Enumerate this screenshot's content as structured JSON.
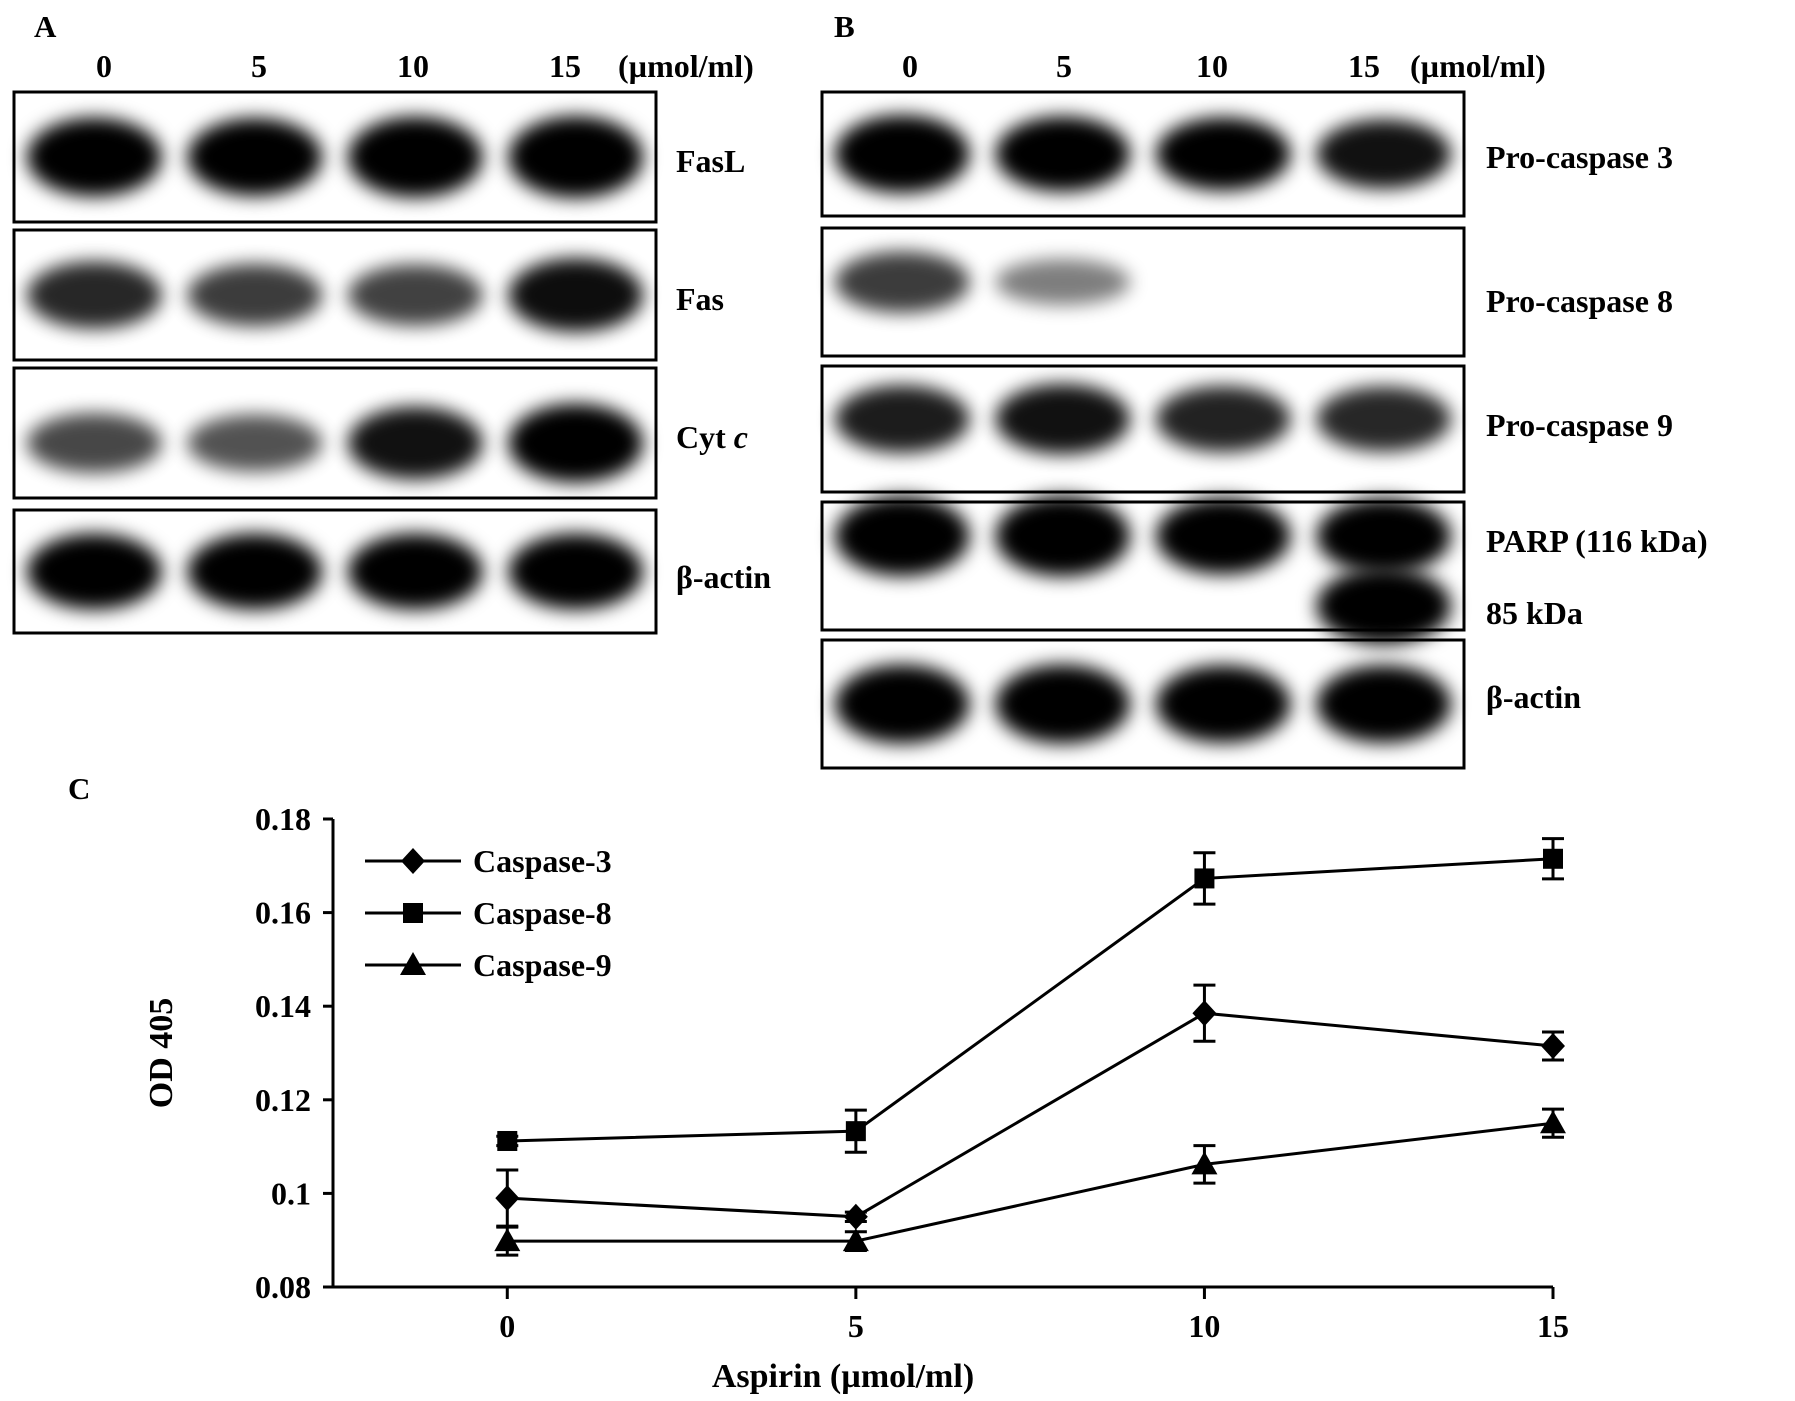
{
  "panel_a": {
    "letter": "A",
    "doses": [
      "0",
      "5",
      "10",
      "15"
    ],
    "unit": "(µmol/ml)",
    "blots": [
      {
        "label": "FasL",
        "bands": [
          0.92,
          0.9,
          0.96,
          0.98
        ]
      },
      {
        "label": "Fas",
        "bands": [
          0.7,
          0.6,
          0.58,
          0.82
        ]
      },
      {
        "label_main": "Cyt",
        "label_italic": "c",
        "bands": [
          0.55,
          0.5,
          0.8,
          0.92
        ]
      },
      {
        "label": "β-actin",
        "bands": [
          0.95,
          0.95,
          0.95,
          0.95
        ]
      }
    ]
  },
  "panel_b": {
    "letter": "B",
    "doses": [
      "0",
      "5",
      "10",
      "15"
    ],
    "unit": "(µmol/ml)",
    "blots": [
      {
        "label": "Pro-caspase 3",
        "bands": [
          0.98,
          0.92,
          0.88,
          0.8
        ]
      },
      {
        "label": "Pro-caspase 8",
        "bands": [
          0.6,
          0.3,
          0.0,
          0.0
        ]
      },
      {
        "label": "Pro-caspase 9",
        "bands": [
          0.75,
          0.8,
          0.72,
          0.7
        ]
      },
      {
        "label": "PARP (116 kDa)",
        "label2": "85 kDa",
        "bands": [
          0.97,
          0.98,
          0.9,
          0.88
        ],
        "bands2": [
          0.0,
          0.0,
          0.0,
          0.9
        ]
      },
      {
        "label": "β-actin",
        "bands": [
          0.95,
          0.95,
          0.92,
          0.92
        ]
      }
    ]
  },
  "panel_c": {
    "letter": "C",
    "chart_data": {
      "type": "line",
      "x": [
        0,
        5,
        10,
        15
      ],
      "xlabel": "Aspirin (µmol/ml)",
      "ylabel": "OD 405",
      "xlim": [
        -2.5,
        15
      ],
      "ylim": [
        0.08,
        0.18
      ],
      "xticks": [
        "0",
        "5",
        "10",
        "15"
      ],
      "yticks": [
        "0.08",
        "0.1",
        "0.12",
        "0.14",
        "0.16",
        "0.18"
      ],
      "legend_position": "top-left",
      "series": [
        {
          "name": "Caspase-3",
          "marker": "diamond",
          "values": [
            0.099,
            0.095,
            0.1385,
            0.1315
          ],
          "errors": [
            0.006,
            0.001,
            0.006,
            0.003
          ]
        },
        {
          "name": "Caspase-8",
          "marker": "square",
          "values": [
            0.1112,
            0.1133,
            0.1673,
            0.1715
          ],
          "errors": [
            0.001,
            0.0045,
            0.0055,
            0.0043
          ]
        },
        {
          "name": "Caspase-9",
          "marker": "triangle",
          "values": [
            0.0898,
            0.0898,
            0.1062,
            0.115
          ],
          "errors": [
            0.003,
            0.002,
            0.004,
            0.003
          ]
        }
      ]
    }
  }
}
